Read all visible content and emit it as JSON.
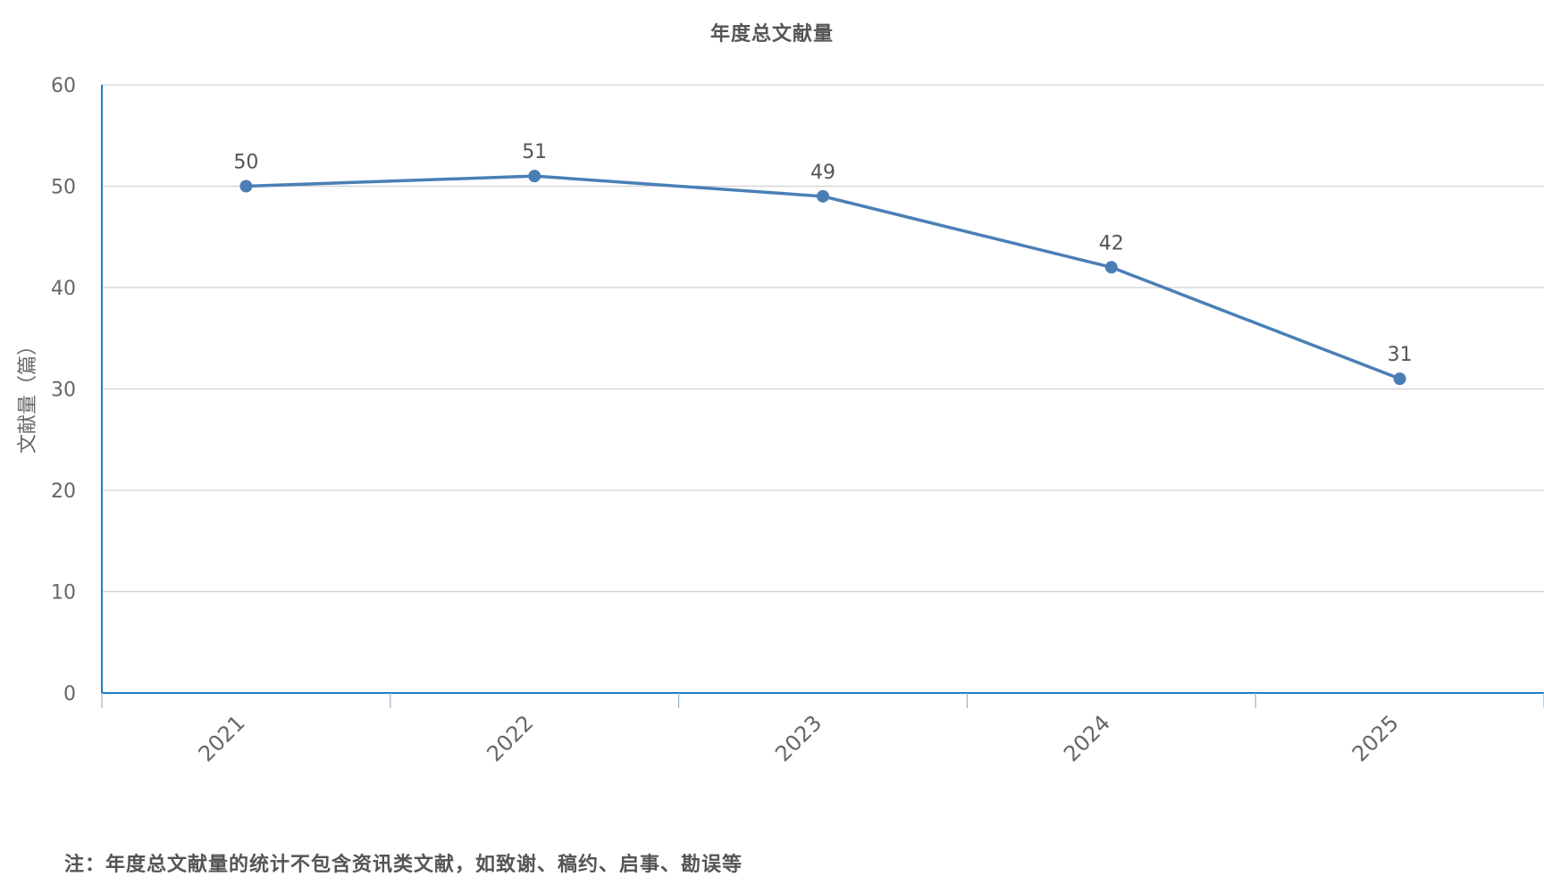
{
  "chart_data": {
    "type": "line",
    "title": "年度总文献量",
    "ylabel": "文献量（篇）",
    "xlabel": "",
    "categories": [
      "2021",
      "2022",
      "2023",
      "2024",
      "2025"
    ],
    "values": [
      50,
      51,
      49,
      42,
      31
    ],
    "ylim": [
      0,
      60
    ],
    "yticks": [
      0,
      10,
      20,
      30,
      40,
      50,
      60
    ],
    "grid": true,
    "data_labels": true,
    "legend": "none",
    "line_color": "#4A7FB5",
    "axis_color": "#1C7FC4"
  },
  "footnote": "注：年度总文献量的统计不包含资讯类文献，如致谢、稿约、启事、勘误等"
}
